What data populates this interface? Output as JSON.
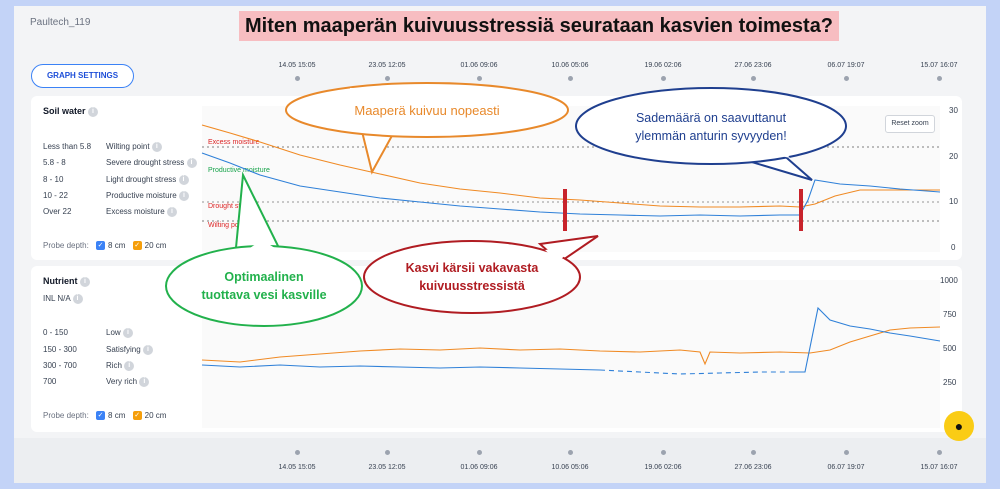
{
  "device_id": "Paultech_119",
  "headline": "Miten maaperän kuivuusstressiä seurataan kasvien toimesta?",
  "graph_settings_label": "GRAPH SETTINGS",
  "timeline": {
    "dates": [
      "14.05 15:05",
      "23.05 12:05",
      "01.06 09:06",
      "10.06 05:06",
      "19.06 02:06",
      "27.06 23:06",
      "06.07 19:07",
      "15.07 16:07"
    ]
  },
  "soil": {
    "title": "Soil water",
    "legend": [
      {
        "range": "Less than 5.8",
        "name": "Wilting point"
      },
      {
        "range": "5.8 - 8",
        "name": "Severe drought stress"
      },
      {
        "range": "8 - 10",
        "name": "Light drought stress"
      },
      {
        "range": "10 - 22",
        "name": "Productive moisture"
      },
      {
        "range": "Over 22",
        "name": "Excess moisture"
      }
    ],
    "probe_label": "Probe depth:",
    "probe_8": "8 cm",
    "probe_20": "20 cm",
    "y_ticks": [
      "30",
      "20",
      "10",
      "0"
    ],
    "zone_labels": {
      "excess": "Excess moisture",
      "productive": "Productive moisture",
      "drought": "Drought st",
      "wilting": "Wilting po"
    },
    "reset_zoom": "Reset zoom"
  },
  "nutrient": {
    "title": "Nutrient",
    "inl": "INL N/A",
    "legend": [
      {
        "range": "0 - 150",
        "name": "Low"
      },
      {
        "range": "150 - 300",
        "name": "Satisfying"
      },
      {
        "range": "300 - 700",
        "name": "Rich"
      },
      {
        "range": "700",
        "name": "Very rich"
      }
    ],
    "probe_label": "Probe depth:",
    "probe_8": "8 cm",
    "probe_20": "20 cm",
    "y_ticks": [
      "1000",
      "750",
      "500",
      "250"
    ]
  },
  "callouts": {
    "orange": "Maaperä kuivuu nopeasti",
    "blue_line1": "Sademäärä on saavuttanut",
    "blue_line2": "ylemmän anturin syvyyden!",
    "green_line1": "Optimaalinen",
    "green_line2": "tuottava vesi kasville",
    "red_line1": "Kasvi kärsii vakavasta",
    "red_line2": "kuivuusstressistä"
  },
  "colors": {
    "probe_8cm": "#3b82f6",
    "probe_20cm": "#f59e0b",
    "callout_orange": "#e8892b",
    "callout_blue": "#1f3f8f",
    "callout_green": "#22b14c",
    "callout_red": "#b01c22",
    "marker": "#c8232b"
  }
}
